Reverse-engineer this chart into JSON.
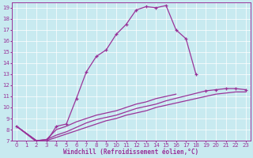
{
  "xlabel": "Windchill (Refroidissement éolien,°C)",
  "bg_color": "#c8eaf0",
  "line_color": "#993399",
  "grid_color": "#ffffff",
  "xlim": [
    -0.5,
    23.5
  ],
  "ylim": [
    7,
    19.5
  ],
  "xticks": [
    0,
    1,
    2,
    3,
    4,
    5,
    6,
    7,
    8,
    9,
    10,
    11,
    12,
    13,
    14,
    15,
    16,
    17,
    18,
    19,
    20,
    21,
    22,
    23
  ],
  "yticks": [
    7,
    8,
    9,
    10,
    11,
    12,
    13,
    14,
    15,
    16,
    17,
    18,
    19
  ],
  "curve1_x": [
    0,
    2,
    3,
    4,
    5,
    6,
    7,
    8,
    9,
    10,
    11,
    12,
    13,
    14,
    15,
    16,
    17,
    18
  ],
  "curve1_y": [
    8.3,
    6.9,
    6.9,
    8.3,
    8.5,
    10.8,
    13.2,
    14.6,
    15.2,
    16.6,
    17.5,
    18.8,
    19.1,
    19.0,
    19.2,
    17.0,
    16.2,
    13.0
  ],
  "curve2_x": [
    0,
    2,
    3,
    4,
    5,
    6,
    7,
    8,
    9,
    10,
    11,
    12,
    13,
    14,
    15,
    16
  ],
  "curve2_y": [
    8.3,
    7.0,
    7.1,
    8.0,
    8.3,
    8.7,
    9.0,
    9.3,
    9.5,
    9.7,
    10.0,
    10.3,
    10.5,
    10.8,
    11.0,
    11.2
  ],
  "curve3_x": [
    0,
    2,
    3,
    4,
    5,
    6,
    7,
    8,
    9,
    10,
    11,
    12,
    13,
    14,
    15,
    19,
    20,
    21,
    22,
    23
  ],
  "curve3_y": [
    8.3,
    7.0,
    7.1,
    7.5,
    7.8,
    8.2,
    8.6,
    8.9,
    9.1,
    9.3,
    9.6,
    9.9,
    10.1,
    10.3,
    10.6,
    11.5,
    11.6,
    11.7,
    11.7,
    11.6
  ],
  "curve4_x": [
    0,
    2,
    3,
    4,
    5,
    6,
    7,
    8,
    9,
    10,
    11,
    12,
    13,
    14,
    15,
    19,
    20,
    21,
    22,
    23
  ],
  "curve4_y": [
    8.3,
    7.0,
    7.0,
    7.3,
    7.6,
    7.9,
    8.2,
    8.5,
    8.8,
    9.0,
    9.3,
    9.5,
    9.7,
    10.0,
    10.2,
    11.0,
    11.2,
    11.3,
    11.4,
    11.4
  ],
  "font_size_tick": 5,
  "font_size_label": 5.5
}
